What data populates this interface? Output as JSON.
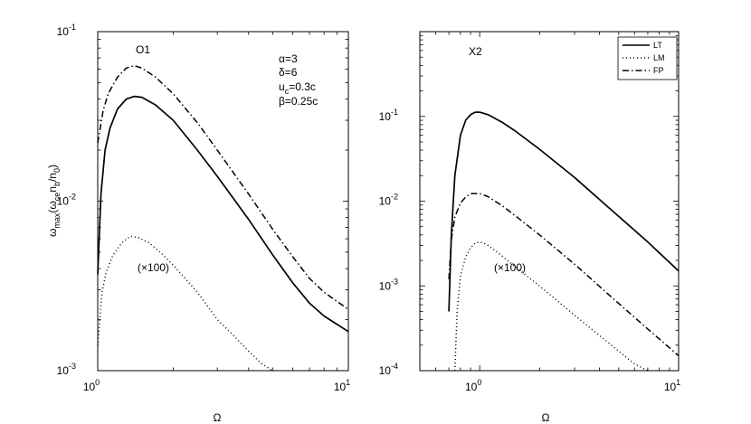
{
  "chart_data": [
    {
      "type": "line",
      "panel_label": "O1",
      "x_scale": "log",
      "y_scale": "log",
      "xlim": [
        1,
        10
      ],
      "ylim": [
        0.001,
        0.1
      ],
      "xlabel": "Ω",
      "ylabel": "ω",
      "ylabel_sub": "max",
      "ylabel_rest": "(ω",
      "ylabel_sub2": "ce",
      "ylabel_rest2": "n",
      "ylabel_sub3": "b",
      "ylabel_rest3": "/n",
      "ylabel_sub4": "0",
      "ylabel_end": ")",
      "x_ticks": [
        {
          "value": 1,
          "base": "10",
          "exp": "0"
        },
        {
          "value": 10,
          "base": "10",
          "exp": "1"
        }
      ],
      "y_ticks": [
        {
          "value": 0.001,
          "base": "10",
          "exp": "-3"
        },
        {
          "value": 0.01,
          "base": "10",
          "exp": "-2"
        },
        {
          "value": 0.1,
          "base": "10",
          "exp": "-1"
        }
      ],
      "params": {
        "alpha": "α=3",
        "delta": "δ=6",
        "uc_main": "u",
        "uc_sub": "c",
        "uc_rest": "=0.3c",
        "beta": "β=0.25c"
      },
      "multiplier_note": "(×100)",
      "series": [
        {
          "key": "LT",
          "style": "solid",
          "x": [
            1.0,
            1.03,
            1.07,
            1.12,
            1.2,
            1.3,
            1.4,
            1.5,
            1.7,
            2.0,
            2.5,
            3.0,
            4.0,
            5.0,
            6.0,
            7.0,
            8.0,
            10.0
          ],
          "y": [
            0.0037,
            0.011,
            0.02,
            0.027,
            0.035,
            0.04,
            0.0415,
            0.041,
            0.037,
            0.03,
            0.02,
            0.014,
            0.0078,
            0.0048,
            0.0033,
            0.0025,
            0.0021,
            0.0017
          ]
        },
        {
          "key": "FP",
          "style": "dashdot",
          "x": [
            1.0,
            1.05,
            1.1,
            1.2,
            1.3,
            1.4,
            1.5,
            1.7,
            2.0,
            2.5,
            3.0,
            4.0,
            5.0,
            6.0,
            7.0,
            8.0,
            10.0
          ],
          "y": [
            0.022,
            0.034,
            0.043,
            0.054,
            0.061,
            0.063,
            0.061,
            0.054,
            0.043,
            0.029,
            0.02,
            0.011,
            0.0068,
            0.0047,
            0.0035,
            0.0029,
            0.0023
          ]
        },
        {
          "key": "LM",
          "style": "dotted",
          "x": [
            1.0,
            1.04,
            1.08,
            1.15,
            1.25,
            1.35,
            1.45,
            1.6,
            1.8,
            2.0,
            2.5,
            3.0,
            3.5,
            4.0,
            4.5,
            5.0
          ],
          "y": [
            0.0014,
            0.0029,
            0.0038,
            0.0048,
            0.0057,
            0.0062,
            0.0061,
            0.0057,
            0.0049,
            0.0042,
            0.0029,
            0.002,
            0.0016,
            0.0013,
            0.0011,
            0.001
          ]
        }
      ]
    },
    {
      "type": "line",
      "panel_label": "X2",
      "x_scale": "log",
      "y_scale": "log",
      "xlim": [
        0.5,
        10
      ],
      "ylim": [
        0.0001,
        1
      ],
      "xlabel": "Ω",
      "x_ticks": [
        {
          "value": 1,
          "base": "10",
          "exp": "0"
        },
        {
          "value": 10,
          "base": "10",
          "exp": "1"
        }
      ],
      "y_ticks": [
        {
          "value": 0.0001,
          "base": "10",
          "exp": "-4"
        },
        {
          "value": 0.001,
          "base": "10",
          "exp": "-3"
        },
        {
          "value": 0.01,
          "base": "10",
          "exp": "-2"
        },
        {
          "value": 0.1,
          "base": "10",
          "exp": "-1"
        }
      ],
      "multiplier_note": "(×100)",
      "legend": {
        "position": "top-right",
        "entries": [
          "LT",
          "LM",
          "FP"
        ]
      },
      "series": [
        {
          "key": "LT",
          "style": "solid",
          "x": [
            0.7,
            0.72,
            0.75,
            0.8,
            0.85,
            0.9,
            0.95,
            1.0,
            1.1,
            1.3,
            1.5,
            2.0,
            3.0,
            5.0,
            7.0,
            10.0
          ],
          "y": [
            0.0005,
            0.004,
            0.02,
            0.06,
            0.09,
            0.105,
            0.112,
            0.112,
            0.105,
            0.085,
            0.068,
            0.041,
            0.019,
            0.0066,
            0.0033,
            0.0015
          ]
        },
        {
          "key": "FP",
          "style": "dashdot",
          "x": [
            0.7,
            0.72,
            0.75,
            0.8,
            0.85,
            0.9,
            1.0,
            1.1,
            1.3,
            1.5,
            2.0,
            3.0,
            5.0,
            7.0,
            10.0
          ],
          "y": [
            0.0012,
            0.0035,
            0.0065,
            0.0095,
            0.0112,
            0.0123,
            0.0123,
            0.0113,
            0.0088,
            0.0068,
            0.004,
            0.0018,
            0.00062,
            0.00031,
            0.00015
          ]
        },
        {
          "key": "LM",
          "style": "dotted",
          "x": [
            0.75,
            0.77,
            0.8,
            0.85,
            0.9,
            0.95,
            1.0,
            1.05,
            1.1,
            1.2,
            1.5,
            2.0,
            3.0,
            4.0,
            5.0,
            6.0,
            7.0
          ],
          "y": [
            0.0001,
            0.0005,
            0.0013,
            0.0022,
            0.0028,
            0.0032,
            0.0033,
            0.0032,
            0.003,
            0.0026,
            0.0017,
            0.001,
            0.00045,
            0.00026,
            0.00017,
            0.00012,
            0.0001
          ]
        }
      ]
    }
  ]
}
